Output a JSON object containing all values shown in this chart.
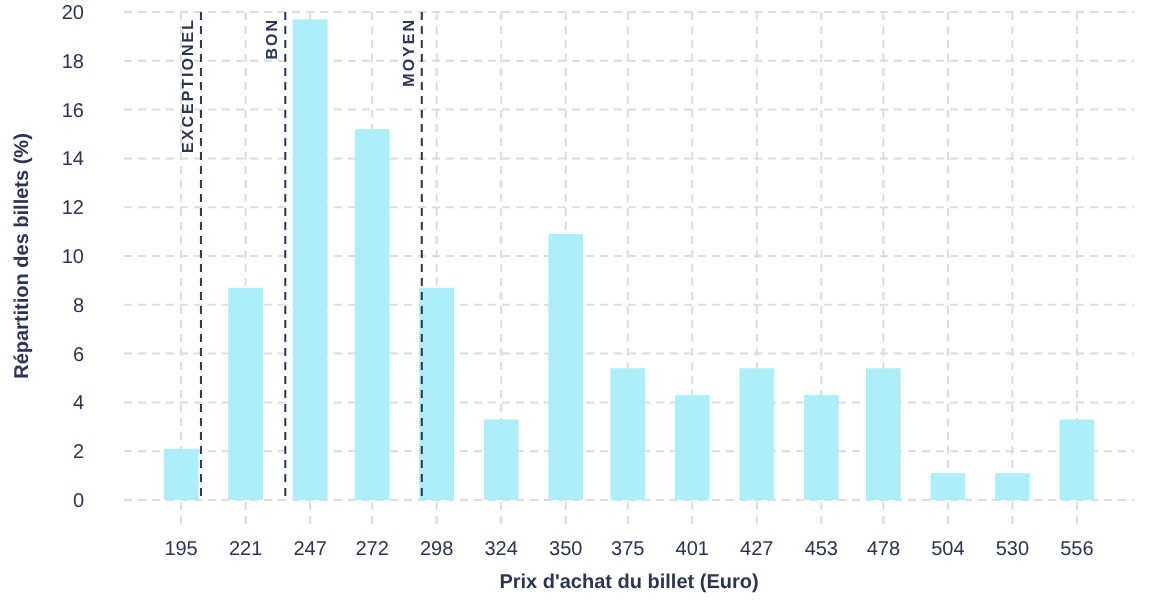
{
  "chart_data": {
    "type": "bar",
    "xlabel": "Prix d'achat du billet (Euro)",
    "ylabel": "Répartition des billets (%)",
    "x": [
      195,
      221,
      247,
      272,
      298,
      324,
      350,
      375,
      401,
      427,
      453,
      478,
      504,
      530,
      556
    ],
    "values": [
      2.1,
      8.7,
      19.7,
      15.2,
      8.7,
      3.3,
      10.9,
      5.4,
      4.3,
      5.4,
      4.3,
      5.4,
      1.1,
      1.1,
      3.3
    ],
    "color": "#aeeef8",
    "xlim": [
      172,
      579
    ],
    "xticks": [
      195,
      221,
      247,
      272,
      298,
      324,
      350,
      375,
      401,
      427,
      453,
      478,
      504,
      530,
      556
    ],
    "ylim": [
      0,
      20
    ],
    "yticks": [
      0,
      2,
      4,
      6,
      8,
      10,
      12,
      14,
      16,
      18,
      20
    ],
    "grid": true,
    "ref_lines": [
      {
        "axis": "x",
        "value": 203,
        "label": "EXCEPTIONEL",
        "color": "#2a3550",
        "line_style": "dashed"
      },
      {
        "axis": "x",
        "value": 237,
        "label": "BON",
        "color": "#2a3550",
        "line_style": "dashed"
      },
      {
        "axis": "x",
        "value": 292,
        "label": "MOYEN",
        "color": "#2a3550",
        "line_style": "dashed"
      }
    ]
  }
}
